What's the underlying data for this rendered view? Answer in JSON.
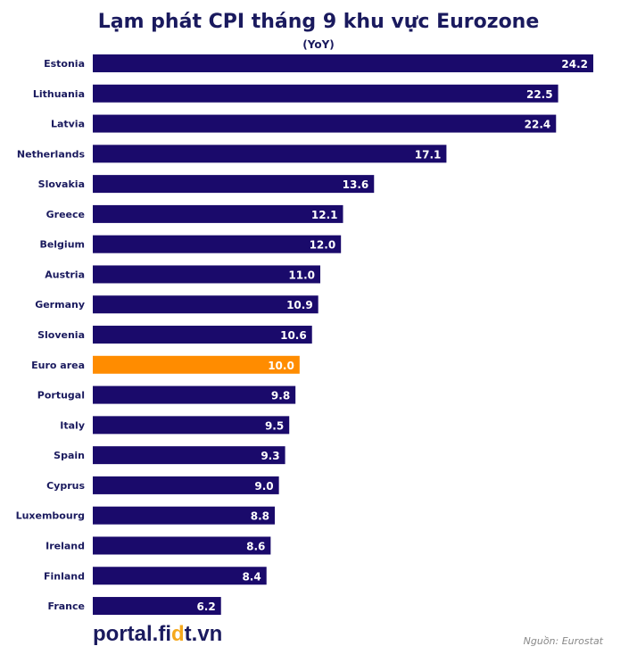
{
  "colors": {
    "bar": "#1a0a6b",
    "highlight": "#ff8c00",
    "title": "#1a1a5e",
    "value_label": "#ffffff"
  },
  "chart_data": {
    "type": "bar",
    "orientation": "horizontal",
    "title": "Lạm phát CPI tháng 9 khu vực Eurozone",
    "subtitle": "(YoY)",
    "xlabel": "",
    "ylabel": "",
    "xlim": [
      0,
      24.2
    ],
    "grid": false,
    "legend": false,
    "categories": [
      "Estonia",
      "Lithuania",
      "Latvia",
      "Netherlands",
      "Slovakia",
      "Greece",
      "Belgium",
      "Austria",
      "Germany",
      "Slovenia",
      "Euro area",
      "Portugal",
      "Italy",
      "Spain",
      "Cyprus",
      "Luxembourg",
      "Ireland",
      "Finland",
      "France"
    ],
    "values": [
      24.2,
      22.5,
      22.4,
      17.1,
      13.6,
      12.1,
      12.0,
      11.0,
      10.9,
      10.6,
      10.0,
      9.8,
      9.5,
      9.3,
      9.0,
      8.8,
      8.6,
      8.4,
      6.2
    ],
    "value_labels": [
      "24.2",
      "22.5",
      "22.4",
      "17.1",
      "13.6",
      "12.1",
      "12.0",
      "11.0",
      "10.9",
      "10.6",
      "10.0",
      "9.8",
      "9.5",
      "9.3",
      "9.0",
      "8.8",
      "8.6",
      "8.4",
      "6.2"
    ],
    "highlight_category": "Euro area"
  },
  "footer": {
    "brand_prefix": "portal.fi",
    "brand_highlight": "d",
    "brand_suffix": "t.vn",
    "source": "Nguồn: Eurostat"
  }
}
